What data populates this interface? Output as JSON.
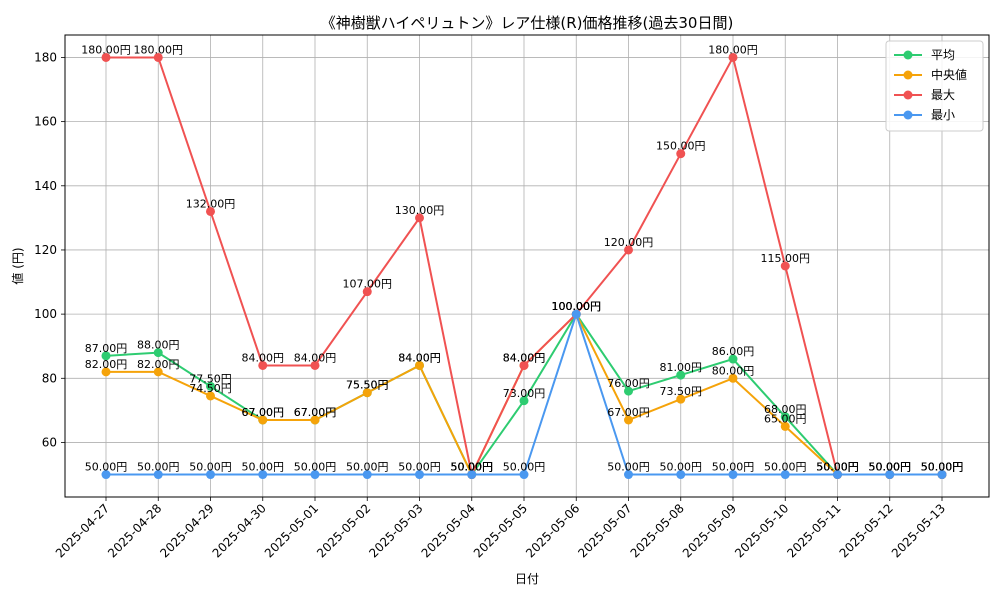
{
  "chart_data": {
    "type": "line",
    "title": "《神樹獣ハイペリュトン》レア仕様(R)価格推移(過去30日間)",
    "xlabel": "日付",
    "ylabel": "値 (円)",
    "x": [
      "2025-04-27",
      "2025-04-28",
      "2025-04-29",
      "2025-04-30",
      "2025-05-01",
      "2025-05-02",
      "2025-05-03",
      "2025-05-04",
      "2025-05-05",
      "2025-05-06",
      "2025-05-07",
      "2025-05-08",
      "2025-05-09",
      "2025-05-10",
      "2025-05-11",
      "2025-05-12",
      "2025-05-13"
    ],
    "yticks": [
      60,
      80,
      100,
      120,
      140,
      160,
      180
    ],
    "ylim": [
      43,
      187
    ],
    "grid": true,
    "legend_position": "top-right",
    "label_suffix": "円",
    "series": [
      {
        "name": "平均",
        "color": "#2ecc71",
        "values": [
          87,
          88,
          77.5,
          67,
          67,
          75.5,
          84,
          50,
          73,
          100,
          76,
          81,
          86,
          68,
          50,
          50,
          50
        ]
      },
      {
        "name": "中央値",
        "color": "#f5a30a",
        "values": [
          82,
          82,
          74.5,
          67,
          67,
          75.5,
          84,
          50,
          84,
          100,
          67,
          73.5,
          80,
          65,
          50,
          50,
          50
        ]
      },
      {
        "name": "最大",
        "color": "#f05252",
        "values": [
          180,
          180,
          132,
          84,
          84,
          107,
          130,
          50,
          84,
          100,
          120,
          150,
          180,
          115,
          50,
          50,
          50
        ]
      },
      {
        "name": "最小",
        "color": "#4a98f0",
        "values": [
          50,
          50,
          50,
          50,
          50,
          50,
          50,
          50,
          50,
          100,
          50,
          50,
          50,
          50,
          50,
          50,
          50
        ]
      }
    ]
  }
}
